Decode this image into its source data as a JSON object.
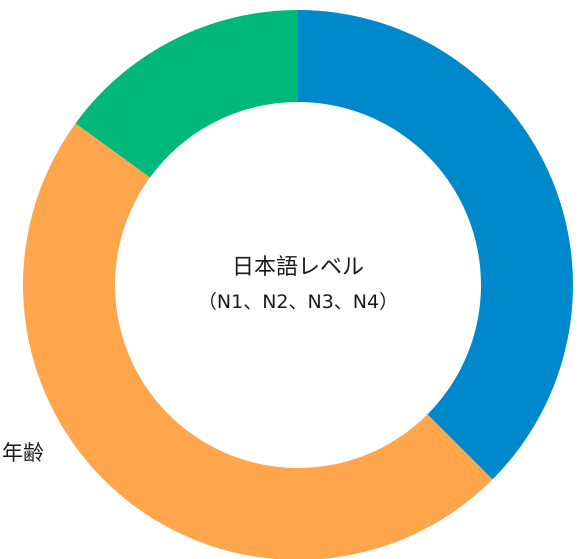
{
  "chart_data": {
    "type": "pie",
    "variant": "donut",
    "center_title": "日本語レベル",
    "center_subtitle": "（N1、N2、N3、N4）",
    "slices": [
      {
        "value": 37.5,
        "color": "#0088cc"
      },
      {
        "value": 47.5,
        "color": "#ffa64d"
      },
      {
        "value": 15,
        "color": "#00b87a"
      }
    ],
    "annotations": [
      {
        "text": "年齢"
      }
    ]
  }
}
